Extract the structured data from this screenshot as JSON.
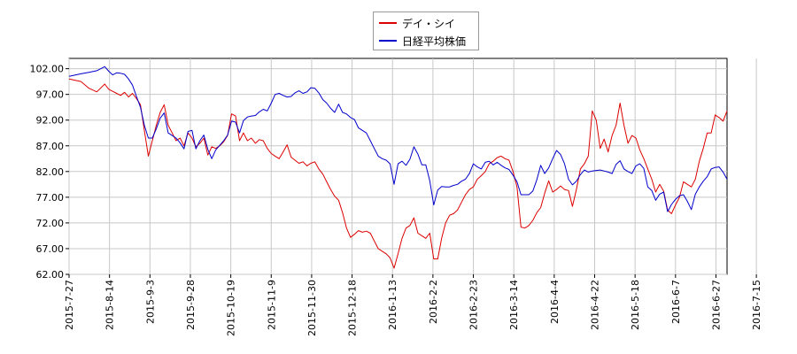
{
  "chart_data": {
    "type": "line",
    "title": "",
    "xlabel": "",
    "ylabel": "",
    "ylim": [
      62,
      104
    ],
    "yticks": [
      "62.00",
      "67.00",
      "72.00",
      "77.00",
      "82.00",
      "87.00",
      "92.00",
      "97.00",
      "102.00"
    ],
    "xticks": [
      "2015-7-27",
      "2015-8-14",
      "2015-9-3",
      "2015-9-28",
      "2015-10-19",
      "2015-11-9",
      "2015-11-30",
      "2015-12-18",
      "2016-1-13",
      "2016-2-2",
      "2016-2-23",
      "2016-3-14",
      "2016-4-4",
      "2016-4-22",
      "2016-5-18",
      "2016-6-7",
      "2016-6-27",
      "2016-7-15"
    ],
    "grid": true,
    "legend_position": "top-center",
    "series": [
      {
        "name": "デイ・シイ",
        "color": "#dd0000",
        "points": [
          [
            0,
            100
          ],
          [
            3,
            99.5
          ],
          [
            5,
            98.2
          ],
          [
            7,
            97.5
          ],
          [
            9,
            99
          ],
          [
            10,
            98
          ],
          [
            12,
            97.2
          ],
          [
            13,
            96.8
          ],
          [
            14,
            97.4
          ],
          [
            15,
            96.5
          ],
          [
            16,
            97.2
          ],
          [
            17,
            96.2
          ],
          [
            18,
            95
          ],
          [
            19,
            90
          ],
          [
            20,
            85
          ],
          [
            21,
            88
          ],
          [
            22,
            91
          ],
          [
            23,
            93.5
          ],
          [
            24,
            95
          ],
          [
            25,
            91
          ],
          [
            26,
            89.5
          ],
          [
            27,
            88
          ],
          [
            28,
            88.5
          ],
          [
            29,
            87
          ],
          [
            30,
            89.5
          ],
          [
            31,
            88.5
          ],
          [
            32,
            86.8
          ],
          [
            33,
            87.5
          ],
          [
            34,
            88.5
          ],
          [
            35,
            85.2
          ],
          [
            36,
            86.8
          ],
          [
            37,
            86.5
          ],
          [
            38,
            87
          ],
          [
            39,
            87.8
          ],
          [
            40,
            89
          ],
          [
            41,
            93.2
          ],
          [
            42,
            92.8
          ],
          [
            43,
            88
          ],
          [
            44,
            89.5
          ],
          [
            45,
            88
          ],
          [
            46,
            88.5
          ],
          [
            47,
            87.5
          ],
          [
            48,
            88.2
          ],
          [
            49,
            88
          ],
          [
            50,
            86.5
          ],
          [
            51,
            85.5
          ],
          [
            52,
            85
          ],
          [
            53,
            84.5
          ],
          [
            54,
            85.8
          ],
          [
            55,
            87.2
          ],
          [
            56,
            84.8
          ],
          [
            57,
            84.2
          ],
          [
            58,
            83.6
          ],
          [
            59,
            83.9
          ],
          [
            60,
            83.1
          ],
          [
            61,
            83.6
          ],
          [
            62,
            83.9
          ],
          [
            63,
            82.5
          ],
          [
            64,
            81.5
          ],
          [
            65,
            80
          ],
          [
            66,
            78.5
          ],
          [
            67,
            77.2
          ],
          [
            68,
            76.4
          ],
          [
            69,
            74
          ],
          [
            70,
            71
          ],
          [
            71,
            69.2
          ],
          [
            72,
            69.8
          ],
          [
            73,
            70.5
          ],
          [
            74,
            70.2
          ],
          [
            75,
            70.4
          ],
          [
            76,
            70
          ],
          [
            77,
            68.5
          ],
          [
            78,
            67
          ],
          [
            79,
            66.5
          ],
          [
            80,
            66
          ],
          [
            81,
            65.2
          ],
          [
            82,
            63.2
          ],
          [
            83,
            66
          ],
          [
            84,
            69
          ],
          [
            85,
            71
          ],
          [
            86,
            71.5
          ],
          [
            87,
            73
          ],
          [
            88,
            70
          ],
          [
            89,
            69.5
          ],
          [
            90,
            69
          ],
          [
            91,
            70
          ],
          [
            92,
            65
          ],
          [
            93,
            65
          ],
          [
            94,
            69
          ],
          [
            95,
            72
          ],
          [
            96,
            73.5
          ],
          [
            97,
            73.8
          ],
          [
            98,
            74.5
          ],
          [
            99,
            76
          ],
          [
            100,
            77.5
          ],
          [
            101,
            78.5
          ],
          [
            102,
            79
          ],
          [
            103,
            80.5
          ],
          [
            104,
            81.2
          ],
          [
            105,
            82
          ],
          [
            106,
            83.5
          ],
          [
            107,
            84
          ],
          [
            108,
            84.7
          ],
          [
            109,
            85
          ],
          [
            110,
            84.5
          ],
          [
            111,
            84.2
          ],
          [
            112,
            82
          ],
          [
            113,
            79
          ],
          [
            114,
            71.2
          ],
          [
            115,
            71
          ],
          [
            116,
            71.5
          ],
          [
            117,
            72.5
          ],
          [
            118,
            74
          ],
          [
            119,
            75
          ],
          [
            120,
            77.8
          ],
          [
            121,
            80.2
          ],
          [
            122,
            78
          ],
          [
            123,
            78.5
          ],
          [
            124,
            79.2
          ],
          [
            125,
            78.5
          ],
          [
            126,
            78.3
          ],
          [
            127,
            75.2
          ],
          [
            128,
            78.5
          ],
          [
            129,
            82.5
          ],
          [
            130,
            83.5
          ],
          [
            131,
            85
          ],
          [
            132,
            93.8
          ],
          [
            133,
            92
          ],
          [
            134,
            86.5
          ],
          [
            135,
            88.3
          ],
          [
            136,
            85.8
          ],
          [
            137,
            89
          ],
          [
            138,
            91
          ],
          [
            139,
            95.3
          ],
          [
            140,
            91
          ],
          [
            141,
            87.5
          ],
          [
            142,
            89
          ],
          [
            143,
            88.5
          ],
          [
            144,
            86.2
          ],
          [
            145,
            84.5
          ],
          [
            146,
            82.5
          ],
          [
            147,
            80.5
          ],
          [
            148,
            78
          ],
          [
            149,
            79.5
          ],
          [
            150,
            78.2
          ],
          [
            151,
            74.5
          ],
          [
            152,
            73.8
          ],
          [
            153,
            75.5
          ],
          [
            154,
            77
          ],
          [
            155,
            80
          ],
          [
            156,
            79.5
          ],
          [
            157,
            79
          ],
          [
            158,
            80.5
          ],
          [
            159,
            84
          ],
          [
            160,
            86.5
          ],
          [
            161,
            89.5
          ],
          [
            162,
            89.5
          ],
          [
            163,
            93
          ],
          [
            164,
            92.5
          ],
          [
            165,
            91.8
          ],
          [
            166,
            93.8
          ]
        ]
      },
      {
        "name": "日経平均株価",
        "color": "#0000cc",
        "points": [
          [
            0,
            100.5
          ],
          [
            3,
            101
          ],
          [
            5,
            101.3
          ],
          [
            7,
            101.6
          ],
          [
            9,
            102.4
          ],
          [
            10,
            101.5
          ],
          [
            11,
            100.8
          ],
          [
            12,
            101.2
          ],
          [
            13,
            101.1
          ],
          [
            14,
            100.9
          ],
          [
            15,
            100
          ],
          [
            16,
            98.8
          ],
          [
            17,
            96.6
          ],
          [
            18,
            94.5
          ],
          [
            19,
            91
          ],
          [
            20,
            88.5
          ],
          [
            21,
            88.5
          ],
          [
            22,
            90.3
          ],
          [
            23,
            92.4
          ],
          [
            24,
            93.4
          ],
          [
            25,
            89.5
          ],
          [
            26,
            89
          ],
          [
            27,
            88.5
          ],
          [
            28,
            87.6
          ],
          [
            29,
            86.4
          ],
          [
            30,
            89.8
          ],
          [
            31,
            90
          ],
          [
            32,
            86.4
          ],
          [
            33,
            88
          ],
          [
            34,
            89.1
          ],
          [
            35,
            86.3
          ],
          [
            36,
            84.5
          ],
          [
            37,
            86.2
          ],
          [
            38,
            87.1
          ],
          [
            39,
            88
          ],
          [
            40,
            89.1
          ],
          [
            41,
            91.8
          ],
          [
            42,
            91.6
          ],
          [
            43,
            89.5
          ],
          [
            44,
            91.9
          ],
          [
            45,
            92.6
          ],
          [
            46,
            92.8
          ],
          [
            47,
            92.9
          ],
          [
            48,
            93.6
          ],
          [
            49,
            94.1
          ],
          [
            50,
            93.8
          ],
          [
            51,
            95.3
          ],
          [
            52,
            97
          ],
          [
            53,
            97.2
          ],
          [
            54,
            96.8
          ],
          [
            55,
            96.5
          ],
          [
            56,
            96.6
          ],
          [
            57,
            97.3
          ],
          [
            58,
            97.7
          ],
          [
            59,
            97.2
          ],
          [
            60,
            97.5
          ],
          [
            61,
            98.3
          ],
          [
            62,
            98.2
          ],
          [
            63,
            97.3
          ],
          [
            64,
            96
          ],
          [
            65,
            95.3
          ],
          [
            66,
            94.3
          ],
          [
            67,
            93.5
          ],
          [
            68,
            95.1
          ],
          [
            69,
            93.5
          ],
          [
            70,
            93.2
          ],
          [
            71,
            92.5
          ],
          [
            72,
            92.1
          ],
          [
            73,
            90.5
          ],
          [
            74,
            90
          ],
          [
            75,
            89.5
          ],
          [
            76,
            88
          ],
          [
            77,
            86.5
          ],
          [
            78,
            85
          ],
          [
            79,
            84.5
          ],
          [
            80,
            84.2
          ],
          [
            81,
            83.5
          ],
          [
            82,
            79.5
          ],
          [
            83,
            83.5
          ],
          [
            84,
            84
          ],
          [
            85,
            83.2
          ],
          [
            86,
            84.4
          ],
          [
            87,
            86.8
          ],
          [
            88,
            85.4
          ],
          [
            89,
            83.3
          ],
          [
            90,
            83.3
          ],
          [
            91,
            80.2
          ],
          [
            92,
            75.5
          ],
          [
            93,
            78.4
          ],
          [
            94,
            79.1
          ],
          [
            95,
            79
          ],
          [
            96,
            79
          ],
          [
            97,
            79.3
          ],
          [
            98,
            79.5
          ],
          [
            99,
            80.1
          ],
          [
            100,
            80.5
          ],
          [
            101,
            81.6
          ],
          [
            102,
            83.5
          ],
          [
            103,
            82.9
          ],
          [
            104,
            82.5
          ],
          [
            105,
            83.8
          ],
          [
            106,
            84
          ],
          [
            107,
            83.3
          ],
          [
            108,
            83.8
          ],
          [
            109,
            83.2
          ],
          [
            110,
            82.7
          ],
          [
            111,
            82.4
          ],
          [
            112,
            81.3
          ],
          [
            113,
            80
          ],
          [
            114,
            77.5
          ],
          [
            115,
            77.5
          ],
          [
            116,
            77.5
          ],
          [
            117,
            78.2
          ],
          [
            118,
            80.4
          ],
          [
            119,
            83.2
          ],
          [
            120,
            81.6
          ],
          [
            121,
            82.7
          ],
          [
            122,
            84.5
          ],
          [
            123,
            86.1
          ],
          [
            124,
            85.3
          ],
          [
            125,
            83.5
          ],
          [
            126,
            80.5
          ],
          [
            127,
            79.4
          ],
          [
            128,
            80.1
          ],
          [
            129,
            81.4
          ],
          [
            130,
            82.3
          ],
          [
            131,
            81.9
          ],
          [
            132,
            82.1
          ],
          [
            133,
            82.2
          ],
          [
            134,
            82.3
          ],
          [
            135,
            82.1
          ],
          [
            136,
            81.9
          ],
          [
            137,
            81.6
          ],
          [
            138,
            83.4
          ],
          [
            139,
            84.1
          ],
          [
            140,
            82.5
          ],
          [
            141,
            82
          ],
          [
            142,
            81.6
          ],
          [
            143,
            83.1
          ],
          [
            144,
            83.5
          ],
          [
            145,
            82.6
          ],
          [
            146,
            79
          ],
          [
            147,
            78.3
          ],
          [
            148,
            76.4
          ],
          [
            149,
            77.6
          ],
          [
            150,
            78
          ],
          [
            151,
            74.2
          ],
          [
            152,
            75.6
          ],
          [
            153,
            76.6
          ],
          [
            154,
            77.3
          ],
          [
            155,
            77.5
          ],
          [
            156,
            76.2
          ],
          [
            157,
            74.6
          ],
          [
            158,
            77.6
          ],
          [
            159,
            79
          ],
          [
            160,
            80.1
          ],
          [
            161,
            81
          ],
          [
            162,
            82.5
          ],
          [
            163,
            82.8
          ],
          [
            164,
            82.9
          ],
          [
            165,
            81.9
          ],
          [
            166,
            80.5
          ]
        ]
      }
    ]
  }
}
